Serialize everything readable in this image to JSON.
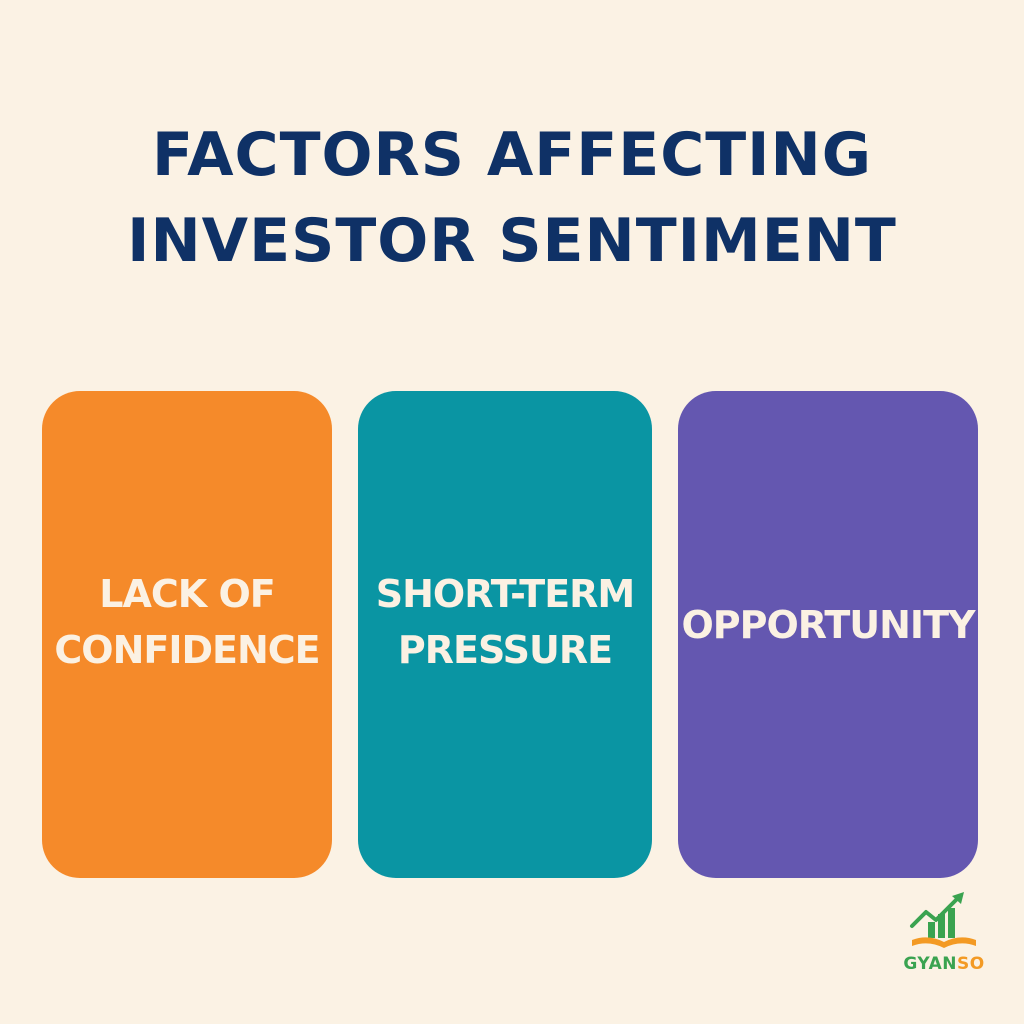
{
  "title": {
    "line1": "FACTORS AFFECTING",
    "line2": "INVESTOR SENTIMENT",
    "color": "#0f3166"
  },
  "cards": [
    {
      "line1": "LACK OF",
      "line2": "CONFIDENCE",
      "color": "#f58a2a"
    },
    {
      "line1": "SHORT-TERM",
      "line2": "PRESSURE",
      "color": "#0a95a3"
    },
    {
      "line1": "OPPORTUNITY",
      "line2": "",
      "color": "#6457b0"
    }
  ],
  "logo": {
    "text_part1": "GYAN",
    "text_part2": "SO",
    "icon": "growth-chart-book-icon",
    "green": "#3aa350",
    "orange": "#f39a24"
  },
  "background_color": "#fbf2e4"
}
